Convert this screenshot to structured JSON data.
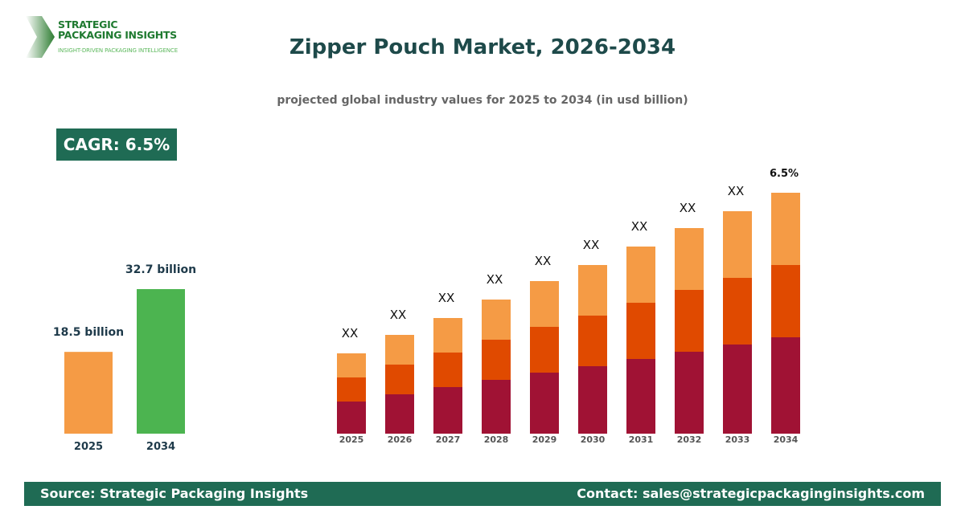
{
  "logo": {
    "line1": "STRATEGIC",
    "line2": "PACKAGING INSIGHTS",
    "tagline": "INSIGHT-DRIVEN PACKAGING INTELLIGENCE"
  },
  "title": "Zipper Pouch Market, 2026-2034",
  "subtitle": "projected global industry values for 2025 to 2034 (in usd billion)",
  "cagr_label": "CAGR: 6.5%",
  "footer": {
    "source": "Source: Strategic Packaging Insights",
    "contact": "Contact: sales@strategicpackaginginsights.com"
  },
  "chart_data": [
    {
      "type": "bar",
      "categories": [
        "2025",
        "2034"
      ],
      "values": [
        18.5,
        32.7
      ],
      "data_labels": [
        "18.5 billion",
        "32.7 billion"
      ],
      "colors": [
        "#f59b45",
        "#4cb450"
      ],
      "unit": "usd billion"
    },
    {
      "type": "bar",
      "stacked": true,
      "categories": [
        "2025",
        "2026",
        "2027",
        "2028",
        "2029",
        "2030",
        "2031",
        "2032",
        "2033",
        "2034"
      ],
      "series": [
        {
          "values": [
            40,
            49,
            58,
            67,
            76,
            84,
            93,
            102,
            111,
            120
          ],
          "color": "#a01234"
        },
        {
          "values": [
            30,
            37,
            43,
            50,
            57,
            63,
            70,
            77,
            83,
            90
          ],
          "color": "#e04a00"
        },
        {
          "values": [
            30,
            37,
            43,
            50,
            57,
            63,
            70,
            77,
            83,
            90
          ],
          "color": "#f59b45"
        }
      ],
      "data_labels": [
        "XX",
        "XX",
        "XX",
        "XX",
        "XX",
        "XX",
        "XX",
        "XX",
        "XX",
        "6.5%"
      ],
      "axes_visible": false,
      "grid": false
    }
  ]
}
